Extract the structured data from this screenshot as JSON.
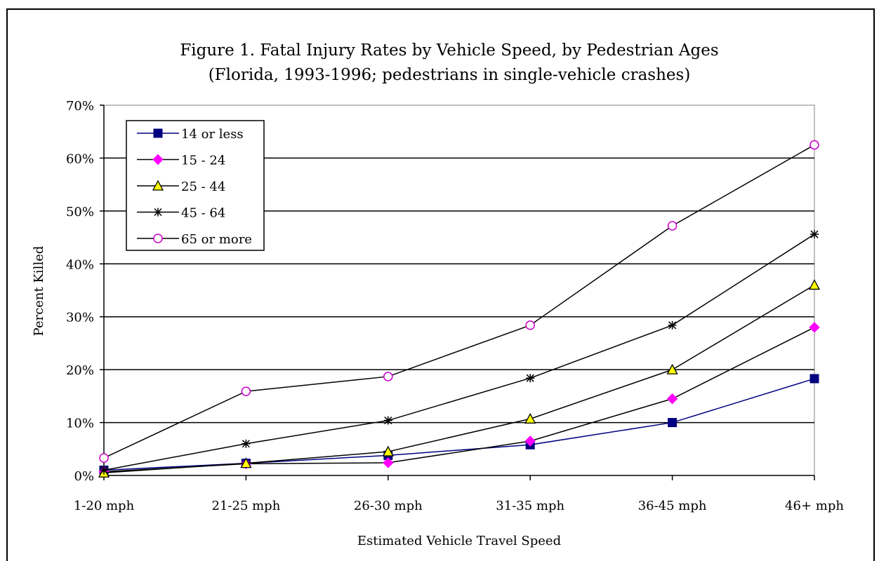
{
  "chart_data": {
    "type": "line",
    "title": "Figure 1. Fatal Injury Rates by Vehicle Speed, by Pedestrian Ages",
    "subtitle": "(Florida, 1993-1996; pedestrians in single-vehicle crashes)",
    "xlabel": "Estimated Vehicle Travel Speed",
    "ylabel": "Percent Killed",
    "categories": [
      "1-20 mph",
      "21-25 mph",
      "26-30 mph",
      "31-35 mph",
      "36-45 mph",
      "46+ mph"
    ],
    "ylim": [
      0,
      70
    ],
    "yticks": [
      "0%",
      "10%",
      "20%",
      "30%",
      "40%",
      "50%",
      "60%",
      "70%"
    ],
    "grid": "horizontal",
    "legend_position": "top-left",
    "series": [
      {
        "name": "14 or less",
        "values": [
          1.0,
          2.3,
          3.8,
          5.8,
          10.0,
          18.3
        ],
        "color": "#000080",
        "marker": "square"
      },
      {
        "name": "15 - 24",
        "values": [
          0.7,
          2.2,
          2.4,
          6.5,
          14.5,
          28.0
        ],
        "color": "#ff00ff",
        "marker": "diamond"
      },
      {
        "name": "25 - 44",
        "values": [
          0.5,
          2.3,
          4.5,
          10.7,
          20.0,
          36.0
        ],
        "color": "#ffff00",
        "marker": "triangle"
      },
      {
        "name": "45 - 64",
        "values": [
          1.0,
          6.0,
          10.4,
          18.4,
          28.4,
          45.6
        ],
        "color": "#000000",
        "marker": "star"
      },
      {
        "name": "65 or more",
        "values": [
          3.3,
          15.9,
          18.7,
          28.4,
          47.2,
          62.5
        ],
        "color": "#cc00cc",
        "marker": "circle"
      }
    ]
  }
}
